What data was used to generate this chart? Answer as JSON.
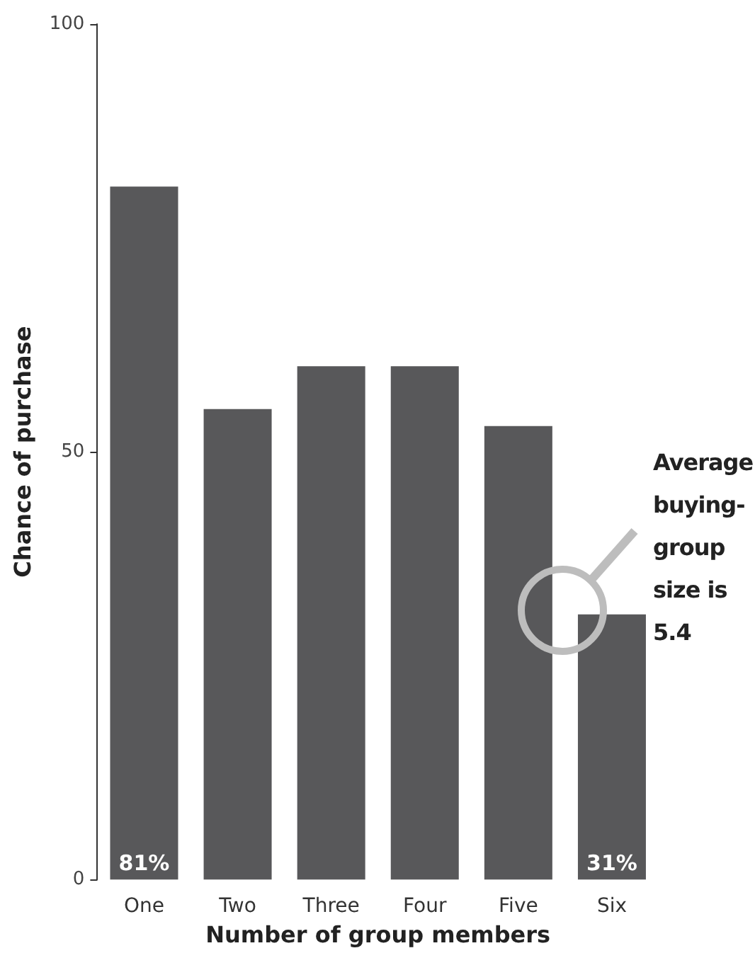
{
  "chart_data": {
    "type": "bar",
    "xlabel": "Number of group members",
    "ylabel": "Chance of purchase",
    "categories": [
      "One",
      "Two",
      "Three",
      "Four",
      "Five",
      "Six"
    ],
    "values": [
      81,
      55,
      60,
      60,
      53,
      31
    ],
    "value_labels": [
      "81%",
      null,
      null,
      null,
      null,
      "31%"
    ],
    "color": "#58585a",
    "ylim": [
      0,
      100
    ],
    "yticks": [
      0,
      50,
      100
    ],
    "grid": false,
    "annotations": [
      "Average buying-group size is 5.4"
    ]
  }
}
